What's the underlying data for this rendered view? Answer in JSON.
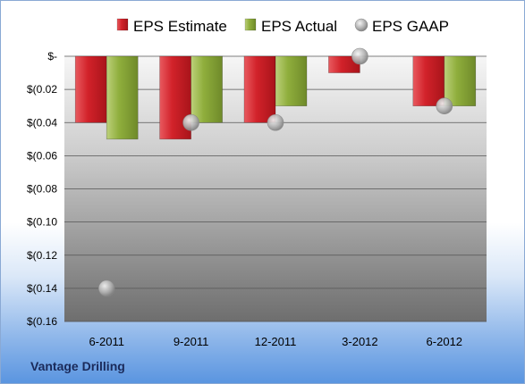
{
  "chart_data": {
    "type": "bar",
    "categories": [
      "6-2011",
      "9-2011",
      "12-2011",
      "3-2012",
      "6-2012"
    ],
    "series": [
      {
        "name": "EPS Estimate",
        "kind": "bar",
        "color": "#d2222a",
        "values": [
          -0.04,
          -0.05,
          -0.04,
          -0.01,
          -0.03
        ]
      },
      {
        "name": "EPS Actual",
        "kind": "bar",
        "color": "#8fae3c",
        "values": [
          -0.05,
          -0.04,
          -0.03,
          0.0,
          -0.03
        ]
      },
      {
        "name": "EPS GAAP",
        "kind": "marker",
        "color": "#b8b8b8",
        "values": [
          -0.14,
          -0.04,
          -0.04,
          0.0,
          -0.03
        ]
      }
    ],
    "ylim": [
      -0.16,
      0.0
    ],
    "yticks": [
      0.0,
      -0.02,
      -0.04,
      -0.06,
      -0.08,
      -0.1,
      -0.12,
      -0.14,
      -0.16
    ],
    "ytick_labels": [
      "$-",
      "$(0.02",
      "$(0.04",
      "$(0.06",
      "$(0.08",
      "$(0.10",
      "$(0.12",
      "$(0.14",
      "$(0.16"
    ],
    "grid": true,
    "legend_position": "top"
  },
  "brand_label": "Vantage Drilling"
}
